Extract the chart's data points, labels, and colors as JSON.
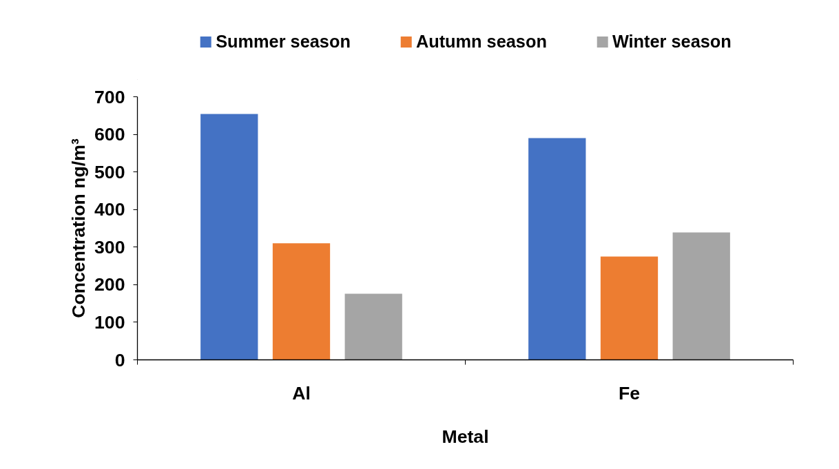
{
  "chart_data": {
    "type": "bar",
    "xlabel": "Metal",
    "ylabel": "Concentration ng/m³",
    "categories": [
      "Al",
      "Fe"
    ],
    "series": [
      {
        "name": "Summer season",
        "color": "#4472c4",
        "values": [
          654,
          590
        ]
      },
      {
        "name": "Autumn season",
        "color": "#ed7d31",
        "values": [
          310,
          275
        ]
      },
      {
        "name": "Winter season",
        "color": "#a5a5a5",
        "values": [
          176,
          339
        ]
      }
    ],
    "ylim": [
      0,
      700
    ],
    "yticks": [
      0,
      100,
      200,
      300,
      400,
      500,
      600,
      700
    ],
    "grid": false,
    "legend": "top"
  }
}
